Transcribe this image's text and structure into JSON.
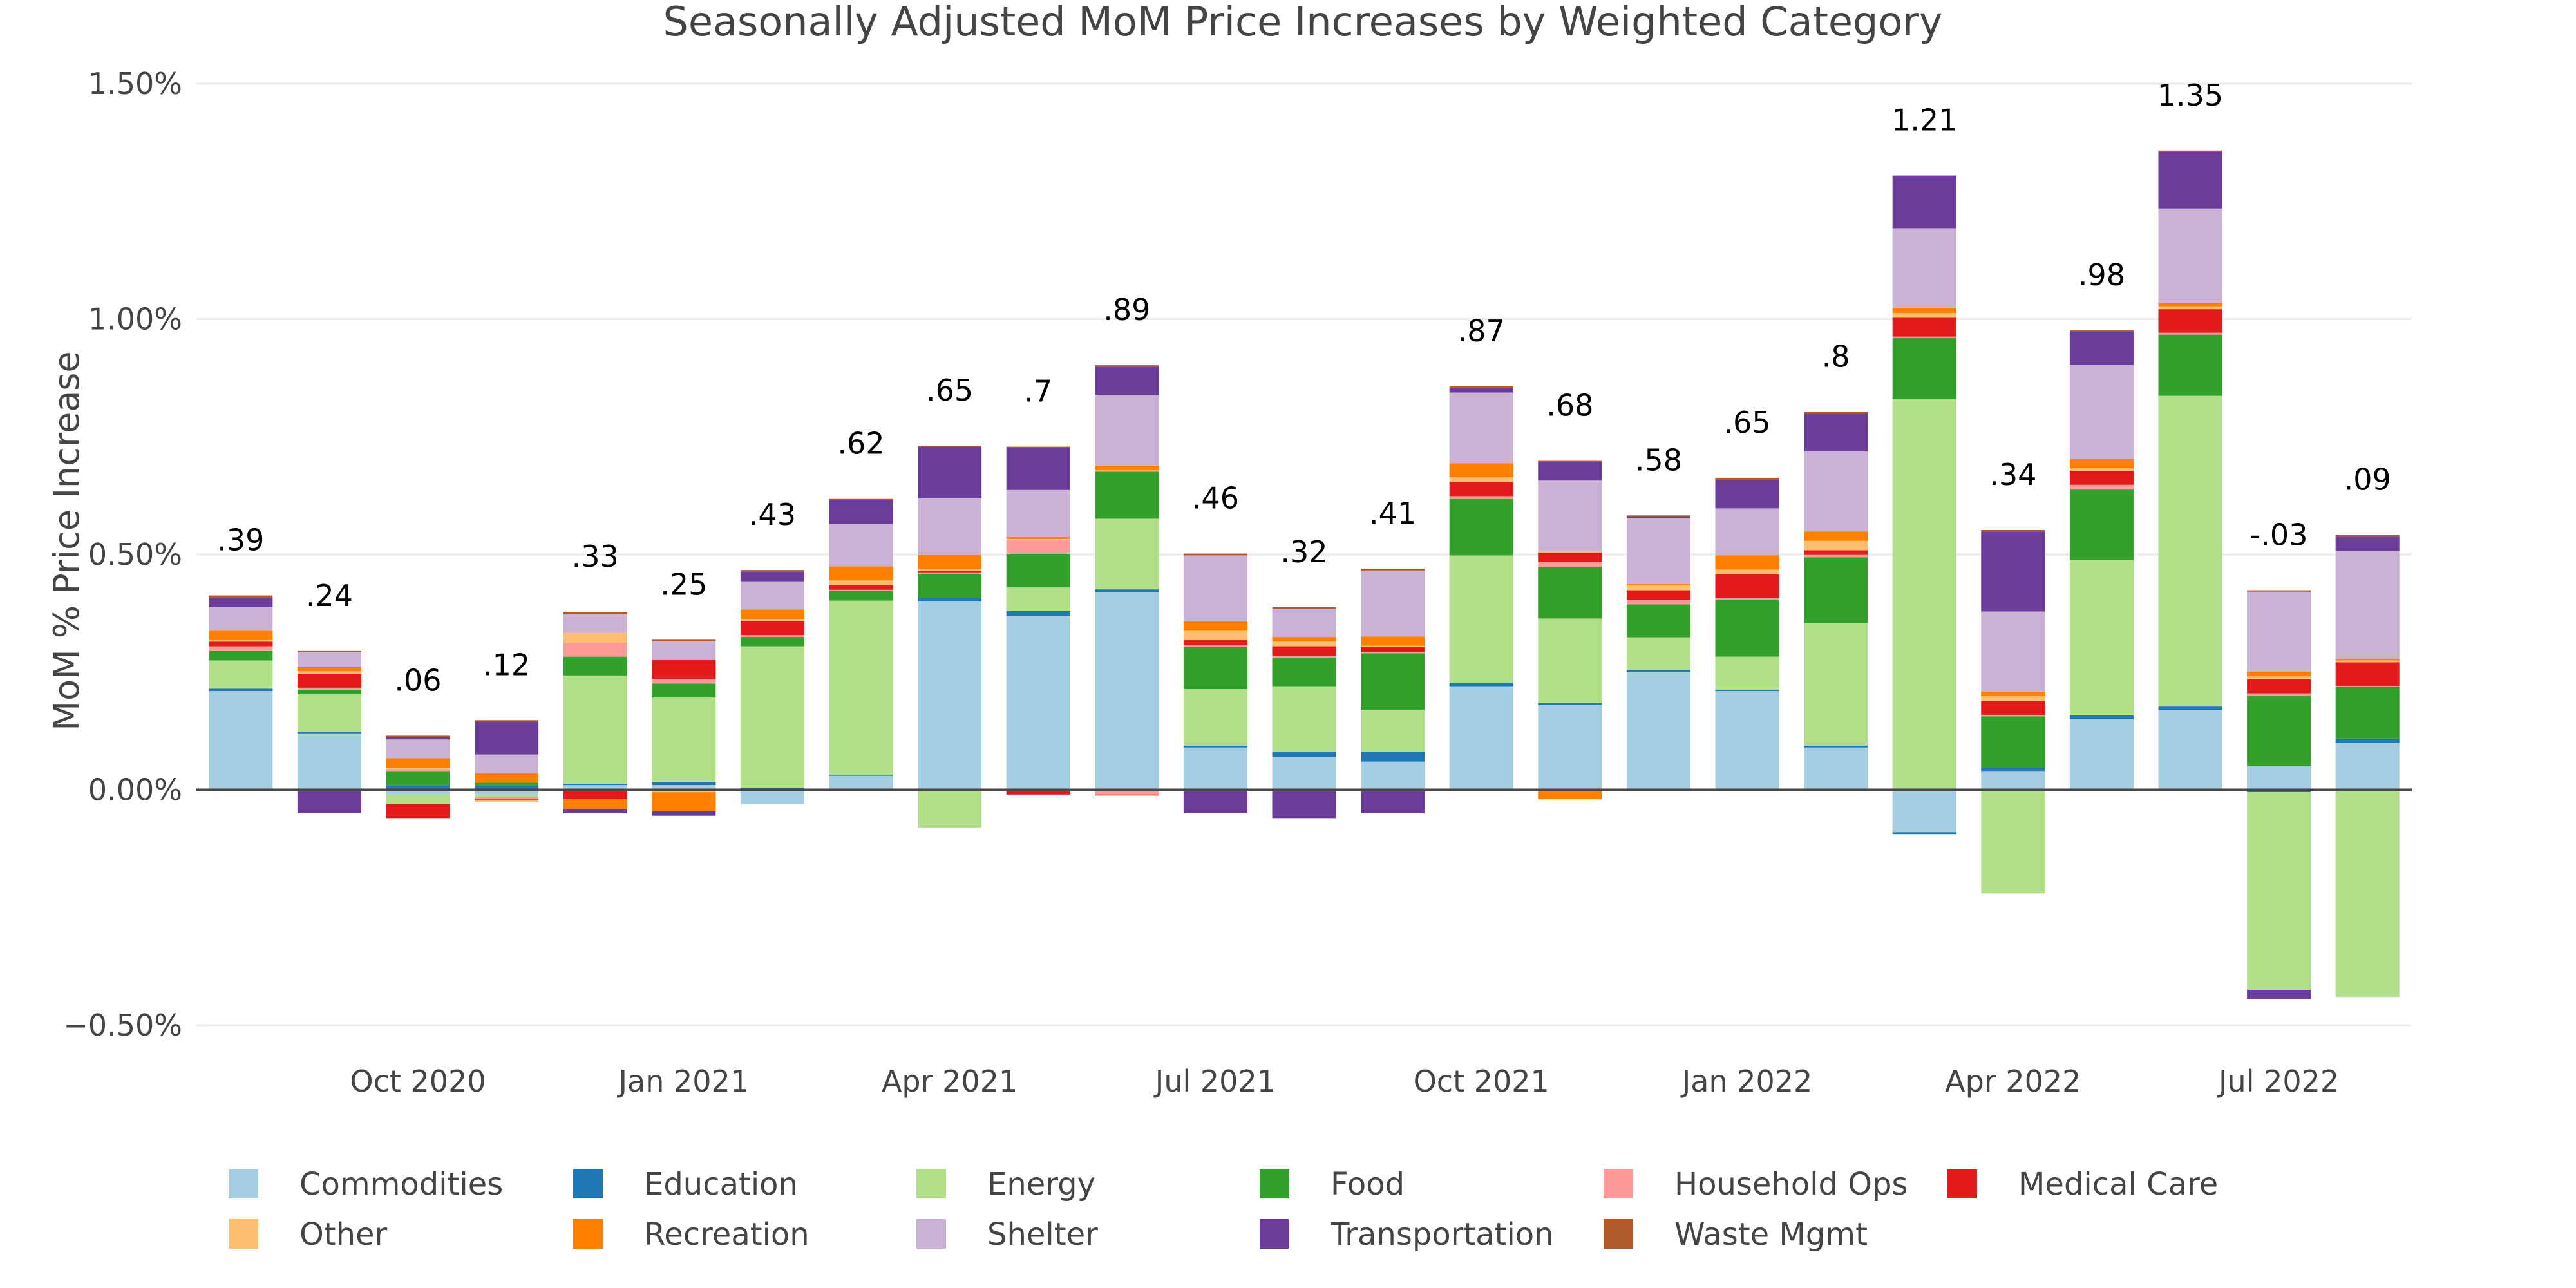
{
  "chart_data": {
    "type": "bar",
    "stacked": true,
    "title": "Seasonally Adjusted MoM Price Increases by Weighted Category",
    "xlabel": "",
    "ylabel": "MoM % Price Increase",
    "ylim": [
      -0.6,
      1.55
    ],
    "yticks": [
      -0.5,
      0.0,
      0.5,
      1.0,
      1.5
    ],
    "ytick_labels": [
      "−0.50%",
      "0.00%",
      "0.50%",
      "1.00%",
      "1.50%"
    ],
    "xtick_labels": [
      {
        "label": "Oct 2020",
        "index": 2
      },
      {
        "label": "Jan 2021",
        "index": 5
      },
      {
        "label": "Apr 2021",
        "index": 8
      },
      {
        "label": "Jul 2021",
        "index": 11
      },
      {
        "label": "Oct 2021",
        "index": 14
      },
      {
        "label": "Jan 2022",
        "index": 17
      },
      {
        "label": "Apr 2022",
        "index": 20
      },
      {
        "label": "Jul 2022",
        "index": 23
      }
    ],
    "grid": true,
    "legend_position": "bottom",
    "categories": [
      "Aug 2020",
      "Sep 2020",
      "Oct 2020",
      "Nov 2020",
      "Dec 2020",
      "Jan 2021",
      "Feb 2021",
      "Mar 2021",
      "Apr 2021",
      "May 2021",
      "Jun 2021",
      "Jul 2021",
      "Aug 2021",
      "Sep 2021",
      "Oct 2021",
      "Nov 2021",
      "Dec 2021",
      "Jan 2022",
      "Feb 2022",
      "Mar 2022",
      "Apr 2022",
      "May 2022",
      "Jun 2022",
      "Jul 2022",
      "Aug 2022"
    ],
    "totals": [
      ".39",
      ".24",
      ".06",
      ".12",
      ".33",
      ".25",
      ".43",
      ".62",
      ".65",
      ".7",
      ".89",
      ".46",
      ".32",
      ".41",
      ".87",
      ".68",
      ".58",
      ".65",
      ".8",
      "1.21",
      ".34",
      ".98",
      "1.35",
      "-.03",
      ".09"
    ],
    "total_colors": [
      "#000000",
      "#000000",
      "#000000",
      "#000000",
      "#000000",
      "#000000",
      "#000000",
      "#000000",
      "#000000",
      "#000000",
      "#000000",
      "#000000",
      "#000000",
      "#000000",
      "#000000",
      "#000000",
      "#000000",
      "#000000",
      "#000000",
      "#000000",
      "#000000",
      "#000000",
      "#000000",
      "#e31a1c",
      "#000000"
    ],
    "series": [
      {
        "name": "Commodities",
        "color": "#a6cee3",
        "values": [
          0.21,
          0.12,
          -0.01,
          -0.01,
          0.01,
          0.01,
          -0.03,
          0.03,
          0.4,
          0.37,
          0.42,
          0.09,
          0.07,
          0.06,
          0.22,
          0.18,
          0.25,
          0.21,
          0.09,
          -0.09,
          0.04,
          0.15,
          0.17,
          0.05,
          0.1
        ]
      },
      {
        "name": "Education",
        "color": "#1f78b4",
        "values": [
          0.005,
          0.003,
          0.01,
          0.01,
          0.003,
          0.006,
          0.005,
          0.002,
          0.008,
          0.01,
          0.006,
          0.004,
          0.01,
          0.02,
          0.008,
          0.004,
          0.004,
          0.003,
          0.004,
          -0.004,
          0.006,
          0.008,
          0.007,
          -0.005,
          0.009
        ]
      },
      {
        "name": "Energy",
        "color": "#b2df8a",
        "values": [
          0.06,
          0.08,
          -0.02,
          -0.005,
          0.23,
          0.18,
          0.3,
          0.37,
          -0.08,
          0.05,
          0.15,
          0.12,
          0.14,
          0.09,
          0.27,
          0.18,
          0.07,
          0.07,
          0.26,
          0.83,
          -0.22,
          0.33,
          0.66,
          -0.42,
          -0.44
        ]
      },
      {
        "name": "Food",
        "color": "#33a02c",
        "values": [
          0.02,
          0.01,
          0.03,
          0.005,
          0.04,
          0.03,
          0.02,
          0.02,
          0.05,
          0.07,
          0.1,
          0.09,
          0.06,
          0.12,
          0.12,
          0.11,
          0.07,
          0.12,
          0.14,
          0.13,
          0.11,
          0.15,
          0.13,
          0.15,
          0.11
        ]
      },
      {
        "name": "Household Ops",
        "color": "#fb9a99",
        "values": [
          0.01,
          0.004,
          0.004,
          -0.004,
          0.03,
          0.01,
          0.004,
          0.003,
          0.004,
          0.03,
          -0.01,
          0.004,
          0.005,
          0.003,
          0.006,
          0.01,
          0.01,
          0.005,
          0.005,
          0.003,
          0.003,
          0.01,
          0.004,
          0.005,
          0.002
        ]
      },
      {
        "name": "Medical Care",
        "color": "#e31a1c",
        "values": [
          0.01,
          0.03,
          -0.03,
          -0.002,
          -0.02,
          0.04,
          0.03,
          0.01,
          0.003,
          -0.01,
          -0.001,
          0.01,
          0.02,
          0.01,
          0.03,
          0.02,
          0.02,
          0.05,
          0.01,
          0.04,
          0.03,
          0.03,
          0.05,
          0.03,
          0.05
        ]
      },
      {
        "name": "Other",
        "color": "#fdbf6f",
        "values": [
          0.003,
          0.005,
          0.003,
          -0.005,
          0.02,
          -0.005,
          0.004,
          0.01,
          0.004,
          0.003,
          0.003,
          0.02,
          0.01,
          0.003,
          0.01,
          0.003,
          0.01,
          0.01,
          0.02,
          0.01,
          0.01,
          0.005,
          0.006,
          0.006,
          0.004
        ]
      },
      {
        "name": "Recreation",
        "color": "#ff7f00",
        "values": [
          0.02,
          0.01,
          0.02,
          0.02,
          -0.02,
          -0.04,
          0.02,
          0.03,
          0.03,
          0.004,
          0.01,
          0.02,
          0.01,
          0.02,
          0.03,
          -0.02,
          0.003,
          0.03,
          0.02,
          0.01,
          0.01,
          0.02,
          0.008,
          0.01,
          0.003
        ]
      },
      {
        "name": "Shelter",
        "color": "#cab2d6",
        "values": [
          0.05,
          0.03,
          0.04,
          0.04,
          0.04,
          0.04,
          0.06,
          0.09,
          0.12,
          0.1,
          0.15,
          0.14,
          0.06,
          0.14,
          0.15,
          0.15,
          0.14,
          0.1,
          0.17,
          0.17,
          0.17,
          0.2,
          0.2,
          0.17,
          0.23
        ]
      },
      {
        "name": "Transportation",
        "color": "#6a3d9a",
        "values": [
          0.02,
          -0.05,
          0.005,
          0.07,
          -0.01,
          -0.01,
          0.02,
          0.05,
          0.11,
          0.09,
          0.06,
          -0.05,
          -0.06,
          -0.05,
          0.01,
          0.04,
          0.003,
          0.06,
          0.08,
          0.11,
          0.17,
          0.07,
          0.12,
          -0.02,
          0.03
        ]
      },
      {
        "name": "Waste Mgmt",
        "color": "#b15928",
        "values": [
          0.005,
          0.003,
          0.003,
          0.003,
          0.005,
          0.003,
          0.004,
          0.003,
          0.002,
          0.002,
          0.003,
          0.004,
          0.003,
          0.004,
          0.003,
          0.002,
          0.003,
          0.005,
          0.004,
          0.002,
          0.003,
          0.003,
          0.003,
          0.003,
          0.004
        ]
      }
    ]
  }
}
